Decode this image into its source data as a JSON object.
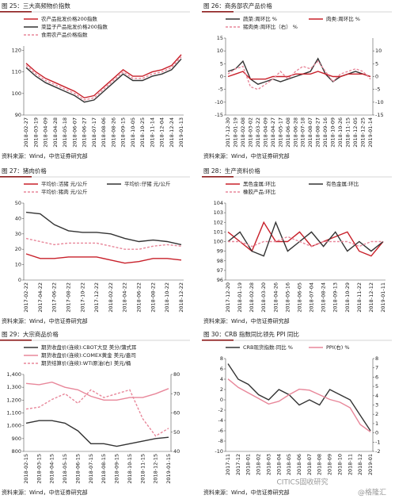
{
  "chart_data": [
    {
      "type": "line",
      "title": "图 25：三大高频物价指数",
      "source": "资料来源：Wind，中信证券研究部",
      "categories": [
        "2018-02-27",
        "2018-03-19",
        "2018-04-09",
        "2018-04-28",
        "2018-05-18",
        "2018-06-07",
        "2018-06-27",
        "2018-07-17",
        "2018-08-06",
        "2018-08-26",
        "2018-09-15",
        "2018-10-05",
        "2018-10-25",
        "2018-11-14",
        "2018-12-04",
        "2018-12-24",
        "2019-01-13"
      ],
      "series": [
        {
          "name": "农产品批发价格200指数",
          "color": "#c8202a",
          "dash": false,
          "values": [
            114,
            110,
            107,
            105,
            103,
            101,
            98,
            99,
            103,
            107,
            111,
            108,
            108,
            110,
            111,
            113,
            118
          ]
        },
        {
          "name": "菜篮子产品批发价格200指数",
          "color": "#333333",
          "dash": false,
          "values": [
            112,
            108,
            105,
            103,
            101,
            99,
            96,
            97,
            101,
            105,
            109,
            106,
            106,
            108,
            109,
            111,
            116
          ]
        },
        {
          "name": "食用农产品价格指数",
          "color": "#e8879a",
          "dash": true,
          "values": [
            113,
            109,
            106,
            104,
            102,
            100,
            97,
            98,
            102,
            106,
            110,
            107,
            107,
            109,
            110,
            112,
            117
          ]
        }
      ],
      "ylim": [
        90,
        122
      ],
      "yticks": [
        90,
        100,
        110,
        120
      ]
    },
    {
      "type": "line",
      "title": "图 26：商务部农产品价格",
      "source": "资料来源：Wind，中信证券研究部",
      "categories": [
        "2017-12-30",
        "2018-01-19",
        "2018-02-08",
        "2018-03-02",
        "2018-03-22",
        "2018-04-09",
        "2018-04-27",
        "2018-05-17",
        "2018-06-08",
        "2018-06-28",
        "2018-07-18",
        "2018-08-07",
        "2018-08-27",
        "2018-09-16",
        "2018-10-09",
        "2018-10-26",
        "2018-11-15",
        "2018-12-05",
        "2018-12-25",
        "2019-01-14"
      ],
      "series": [
        {
          "name": "蔬菜:周环比 %",
          "color": "#333333",
          "dash": false,
          "values": [
            2,
            3,
            6,
            -1,
            -3,
            -2,
            -1,
            -2,
            -1,
            0,
            1,
            2,
            7,
            1,
            -2,
            0,
            1,
            2,
            1,
            0
          ]
        },
        {
          "name": "肉类:周环比 %",
          "color": "#c8202a",
          "dash": false,
          "values": [
            0,
            1,
            2,
            -1,
            -1,
            -1,
            0,
            0,
            0,
            1,
            1,
            1,
            2,
            1,
            0,
            0,
            1,
            1,
            1,
            0
          ]
        },
        {
          "name": "猪肉类:周环比（右） %",
          "color": "#e8879a",
          "dash": true,
          "axis": "y2",
          "values": [
            1,
            3,
            4,
            -4,
            -5,
            -3,
            -1,
            2,
            -1,
            2,
            4,
            3,
            6,
            2,
            -2,
            1,
            2,
            3,
            2,
            -1
          ]
        }
      ],
      "ylim": [
        -15,
        15
      ],
      "yticks": [
        -15,
        -10,
        -5,
        0,
        5,
        10,
        15
      ],
      "y2lim": [
        -15,
        15
      ],
      "y2ticks": [
        -15,
        -10,
        -5,
        0,
        5,
        10
      ]
    },
    {
      "type": "line",
      "title": "图 27：猪肉价格",
      "source": "资料来源：Wind，中信证券研究部",
      "categories": [
        "2017-02-22",
        "2017-04-22",
        "2017-06-22",
        "2017-08-22",
        "2017-10-22",
        "2017-12-22",
        "2018-02-22",
        "2018-04-22",
        "2018-06-22",
        "2018-08-22",
        "2018-10-22",
        "2018-12-22"
      ],
      "series": [
        {
          "name": "平均价:活猪 元/公斤",
          "color": "#c8202a",
          "dash": false,
          "values": [
            17,
            14,
            14,
            15,
            15,
            15,
            13,
            11,
            12,
            14,
            14,
            13
          ]
        },
        {
          "name": "平均价:仔猪 元/公斤",
          "color": "#333333",
          "dash": false,
          "values": [
            44,
            43,
            36,
            32,
            31,
            31,
            30,
            27,
            25,
            26,
            25,
            23
          ]
        },
        {
          "name": "平均价:猪肉 元/公斤",
          "color": "#e8879a",
          "dash": true,
          "values": [
            27,
            25,
            23,
            24,
            24,
            24,
            22,
            20,
            20,
            22,
            23,
            22
          ]
        }
      ],
      "ylim": [
        0,
        50
      ],
      "yticks": [
        0,
        10,
        20,
        30,
        40,
        50
      ]
    },
    {
      "type": "line",
      "title": "图 28：生产资料价格",
      "source": "资料来源：Wind，中信证券研究部",
      "categories": [
        "2017-12-20",
        "2018-01-19",
        "2018-02-28",
        "2018-03-20",
        "2018-04-26",
        "2018-05-16",
        "2018-06-05",
        "2018-07-04",
        "2018-08-24",
        "2018-09-13",
        "2018-10-29",
        "2018-11-22",
        "2018-12-12",
        "2019-01-11"
      ],
      "series": [
        {
          "name": "黑色金属:环比",
          "color": "#c8202a",
          "dash": false,
          "values": [
            101,
            100,
            99,
            102,
            100,
            100,
            101,
            99.5,
            100,
            100.5,
            101,
            99,
            98.5,
            100
          ]
        },
        {
          "name": "有色金属:环比",
          "color": "#333333",
          "dash": false,
          "values": [
            100,
            101,
            99,
            98.5,
            102,
            99,
            100,
            101,
            99.5,
            101,
            99,
            100,
            99,
            100
          ]
        },
        {
          "name": "橡胶产品:环比",
          "color": "#e8879a",
          "dash": true,
          "values": [
            100,
            100,
            99.5,
            100,
            100,
            100.5,
            100,
            99.5,
            100,
            100,
            100,
            99.5,
            100,
            100
          ]
        }
      ],
      "ylim": [
        96,
        104
      ],
      "yticks": [
        96,
        97,
        98,
        99,
        100,
        101,
        102,
        103,
        104
      ]
    },
    {
      "type": "line",
      "title": "图 29：大宗商品价格",
      "source": "资料来源：Wind，中信证券研究部",
      "categories": [
        "2018-02-15",
        "2018-03-15",
        "2018-04-15",
        "2018-05-15",
        "2018-06-15",
        "2018-07-15",
        "2018-08-15",
        "2018-09-15",
        "2018-10-15",
        "2018-11-15",
        "2018-12-15",
        "2019-01-15"
      ],
      "series": [
        {
          "name": "期货收盘价(连续):CBOT大豆 美分/蒲式耳",
          "color": "#333333",
          "dash": false,
          "values": [
            1020,
            1040,
            1040,
            1020,
            960,
            860,
            860,
            840,
            860,
            880,
            900,
            910
          ]
        },
        {
          "name": "期货收盘价(连续):COMEX黄金 美元/盎司",
          "color": "#e8879a",
          "dash": false,
          "values": [
            1330,
            1320,
            1340,
            1300,
            1280,
            1230,
            1200,
            1200,
            1220,
            1220,
            1250,
            1290
          ]
        },
        {
          "name": "期货结算价(连续):WTI原油(右) 美元/桶",
          "color": "#e8879a",
          "dash": true,
          "axis": "y2",
          "values": [
            62,
            63,
            67,
            70,
            65,
            72,
            68,
            70,
            72,
            57,
            48,
            52
          ]
        }
      ],
      "ylim": [
        800,
        1400
      ],
      "yticks": [
        800,
        900,
        {
          "value": 1000,
          "label": "1,000"
        },
        {
          "value": 1100,
          "label": "1,100"
        },
        {
          "value": 1200,
          "label": "1,200"
        },
        {
          "value": 1300,
          "label": "1,300"
        },
        {
          "value": 1400,
          "label": "1,400"
        }
      ],
      "y2lim": [
        40,
        80
      ],
      "y2ticks": [
        40,
        50,
        60,
        70,
        80
      ]
    },
    {
      "type": "line",
      "title": "图 30：CRB 指数同比领先 PPI 同比",
      "source": "资料来源：Wind，中信证券研究部",
      "categories": [
        "2017-11",
        "2017-12",
        "2018-01",
        "2018-02",
        "2018-03",
        "2018-04",
        "2018-05",
        "2018-06",
        "2018-07",
        "2018-08",
        "2018-09",
        "2018-10",
        "2018-11",
        "2018-12",
        "2019-01"
      ],
      "series": [
        {
          "name": "CRB现货指数:同比 %",
          "color": "#333333",
          "dash": false,
          "values": [
            7,
            4,
            3,
            1,
            0,
            2,
            1,
            -1,
            0,
            -1,
            2,
            1,
            0,
            -3,
            -6
          ]
        },
        {
          "name": "PPI(右) %",
          "color": "#e8879a",
          "dash": false,
          "axis": "y2",
          "values": [
            5.8,
            4.9,
            4.3,
            3.7,
            3.1,
            3.4,
            4.1,
            4.7,
            4.6,
            4.1,
            3.6,
            3.3,
            2.7,
            0.9,
            0.1
          ]
        }
      ],
      "ylim": [
        -10,
        8
      ],
      "yticks": [
        -10,
        -8,
        -6,
        -4,
        -2,
        0,
        2,
        4,
        6,
        8
      ],
      "y2lim": [
        -2,
        8
      ],
      "y2ticks": [
        -2,
        -1,
        0,
        1,
        2,
        3,
        4,
        5,
        6,
        7,
        8
      ]
    }
  ],
  "watermark": [
    "CITICS固收研究",
    "@格隆汇"
  ]
}
